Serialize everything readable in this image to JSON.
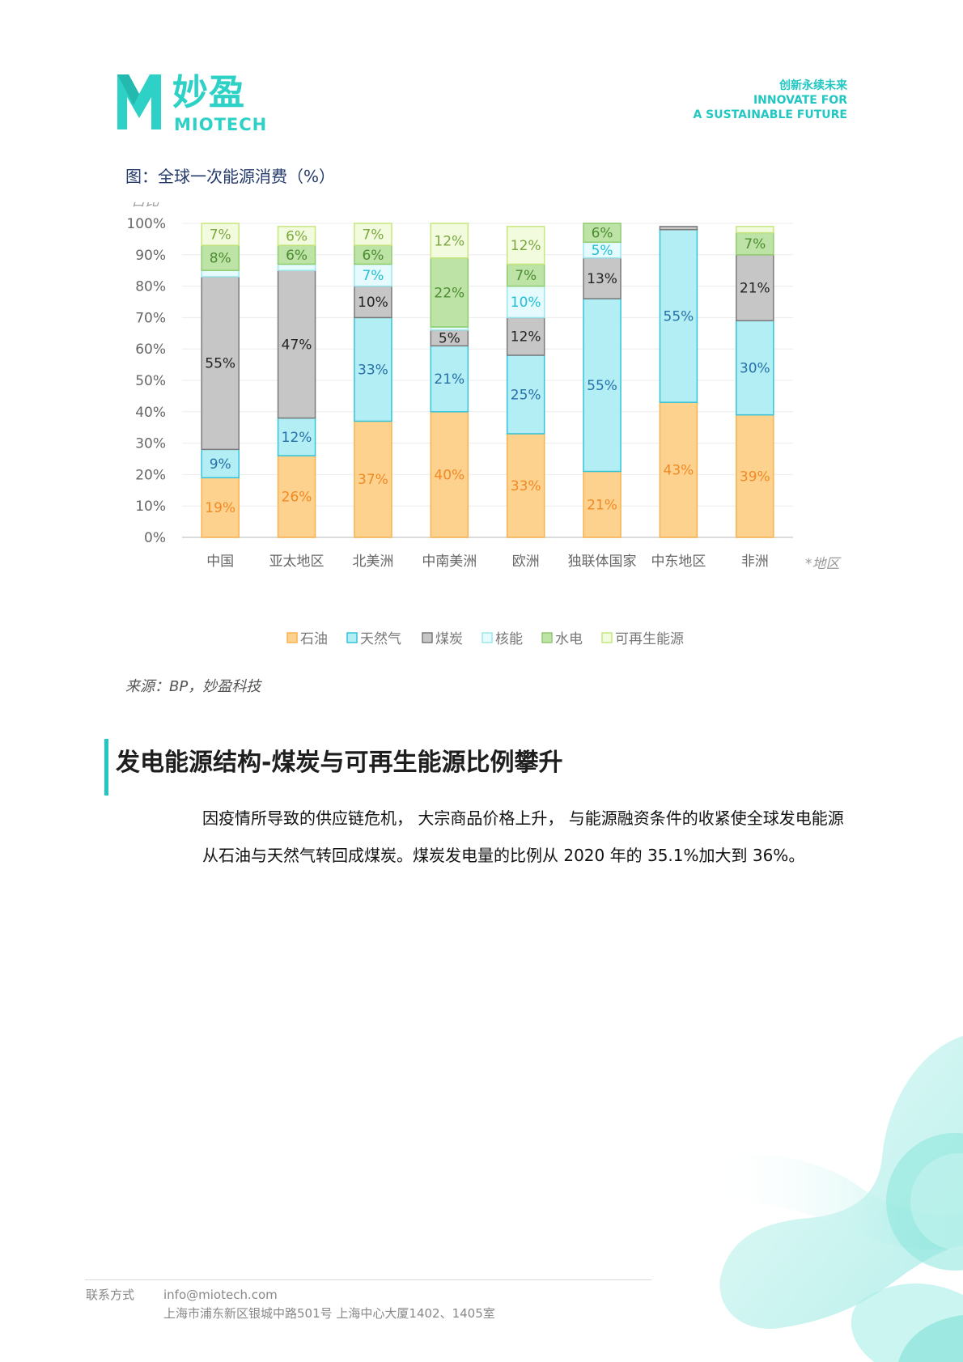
{
  "brand": {
    "name_cn": "妙盈",
    "name_en": "MIOTECH",
    "slogan_line1": "创新永续未来",
    "slogan_line2": "INNOVATE FOR",
    "slogan_line3": "A SUSTAINABLE FUTURE",
    "color": "#2dd1c5"
  },
  "figure": {
    "title": "图：全球一次能源消费（%）",
    "source": "来源：BP，妙盈科技"
  },
  "chart_data": {
    "type": "bar",
    "stacked": true,
    "ylabel": "*占比",
    "xlabel": "*地区",
    "ylim": [
      0,
      100
    ],
    "yticks": [
      "0%",
      "10%",
      "20%",
      "30%",
      "40%",
      "50%",
      "60%",
      "70%",
      "80%",
      "90%",
      "100%"
    ],
    "grid": true,
    "legend_position": "bottom",
    "categories": [
      "中国",
      "亚太地区",
      "北美洲",
      "中南美洲",
      "欧洲",
      "独联体国家",
      "中东地区",
      "非洲"
    ],
    "series": [
      {
        "name": "石油",
        "color": "#fdd28f",
        "stroke": "#f6b24e",
        "label_color": "#f08a24",
        "values": [
          19,
          26,
          37,
          40,
          33,
          21,
          43,
          39
        ],
        "labels": [
          "19%",
          "26%",
          "37%",
          "40%",
          "33%",
          "21%",
          "43%",
          "39%"
        ]
      },
      {
        "name": "天然气",
        "color": "#b3eef4",
        "stroke": "#33c4d9",
        "label_color": "#2670a8",
        "values": [
          9,
          12,
          33,
          21,
          25,
          55,
          55,
          30
        ],
        "labels": [
          "9%",
          "12%",
          "33%",
          "21%",
          "25%",
          "55%",
          "55%",
          "30%"
        ]
      },
      {
        "name": "煤炭",
        "color": "#c6c6c6",
        "stroke": "#7a7a7a",
        "label_color": "#222222",
        "values": [
          55,
          47,
          10,
          5,
          12,
          13,
          1,
          21
        ],
        "labels": [
          "55%",
          "47%",
          "10%",
          "5%",
          "12%",
          "13%",
          "",
          "21%"
        ]
      },
      {
        "name": "核能",
        "color": "#e6fbfd",
        "stroke": "#9be6ee",
        "label_color": "#1fbfd6",
        "values": [
          2,
          2,
          7,
          1,
          10,
          5,
          0,
          0
        ],
        "labels": [
          "",
          "",
          "7%",
          "",
          "10%",
          "5%",
          "",
          ""
        ]
      },
      {
        "name": "水电",
        "color": "#bde3a6",
        "stroke": "#8fcc6e",
        "label_color": "#4c8c31",
        "values": [
          8,
          6,
          6,
          22,
          7,
          6,
          0,
          7
        ],
        "labels": [
          "8%",
          "6%",
          "6%",
          "22%",
          "7%",
          "6%",
          "",
          "7%"
        ]
      },
      {
        "name": "可再生能源",
        "color": "#f3fbdf",
        "stroke": "#c6e67e",
        "label_color": "#7aa83d",
        "values": [
          7,
          6,
          7,
          12,
          12,
          0,
          0,
          2
        ],
        "labels": [
          "7%",
          "6%",
          "7%",
          "12%",
          "12%",
          "",
          "",
          ""
        ]
      }
    ]
  },
  "section": {
    "title": "发电能源结构-煤炭与可再生能源比例攀升",
    "paragraph": "因疫情所导致的供应链危机， 大宗商品价格上升， 与能源融资条件的收紧使全球发电能源从石油与天然气转回成煤炭。煤炭发电量的比例从 2020 年的 35.1%加大到 36%。"
  },
  "footer": {
    "label": "联系方式",
    "email": "info@miotech.com",
    "address": "上海市浦东新区银城中路501号 上海中心大厦1402、1405室"
  }
}
